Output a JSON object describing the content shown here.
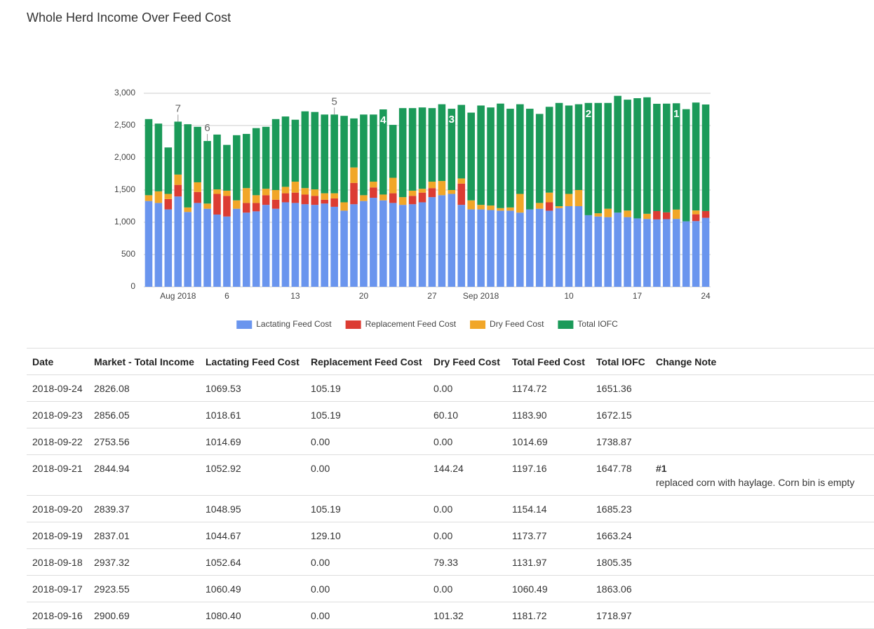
{
  "chart_data": {
    "type": "bar",
    "stacked": true,
    "title": "Whole Herd Income Over Feed Cost",
    "x": [
      "2018-07-29",
      "2018-07-30",
      "2018-07-31",
      "2018-08-01",
      "2018-08-02",
      "2018-08-03",
      "2018-08-04",
      "2018-08-05",
      "2018-08-06",
      "2018-08-07",
      "2018-08-08",
      "2018-08-09",
      "2018-08-10",
      "2018-08-11",
      "2018-08-12",
      "2018-08-13",
      "2018-08-14",
      "2018-08-15",
      "2018-08-16",
      "2018-08-17",
      "2018-08-18",
      "2018-08-19",
      "2018-08-20",
      "2018-08-21",
      "2018-08-22",
      "2018-08-23",
      "2018-08-24",
      "2018-08-25",
      "2018-08-26",
      "2018-08-27",
      "2018-08-28",
      "2018-08-29",
      "2018-08-30",
      "2018-08-31",
      "2018-09-01",
      "2018-09-02",
      "2018-09-03",
      "2018-09-04",
      "2018-09-05",
      "2018-09-06",
      "2018-09-07",
      "2018-09-08",
      "2018-09-09",
      "2018-09-10",
      "2018-09-11",
      "2018-09-12",
      "2018-09-13",
      "2018-09-14",
      "2018-09-15",
      "2018-09-16",
      "2018-09-17",
      "2018-09-18",
      "2018-09-19",
      "2018-09-20",
      "2018-09-21",
      "2018-09-22",
      "2018-09-23",
      "2018-09-24"
    ],
    "series": [
      {
        "name": "Lactating Feed Cost",
        "color": "#6a95ee",
        "values": [
          1330,
          1300,
          1200,
          1400,
          1160,
          1300,
          1210,
          1120,
          1090,
          1210,
          1150,
          1170,
          1270,
          1210,
          1310,
          1300,
          1280,
          1270,
          1290,
          1240,
          1180,
          1280,
          1330,
          1380,
          1340,
          1300,
          1270,
          1280,
          1310,
          1390,
          1420,
          1440,
          1270,
          1200,
          1200,
          1190,
          1180,
          1180,
          1150,
          1200,
          1210,
          1180,
          1220,
          1250,
          1250,
          1110,
          1090,
          1080,
          1150,
          1080.4,
          1060.49,
          1052.64,
          1044.67,
          1048.95,
          1052.92,
          1014.69,
          1018.61,
          1069.53
        ]
      },
      {
        "name": "Replacement Feed Cost",
        "color": "#dc3c32",
        "values": [
          0,
          0,
          160,
          180,
          0,
          170,
          0,
          320,
          320,
          0,
          150,
          130,
          150,
          140,
          140,
          160,
          150,
          140,
          60,
          130,
          0,
          330,
          0,
          160,
          0,
          150,
          0,
          130,
          150,
          140,
          0,
          0,
          330,
          0,
          0,
          0,
          0,
          0,
          0,
          0,
          0,
          130,
          0,
          0,
          0,
          0,
          0,
          0,
          0,
          0,
          0,
          0,
          129.1,
          105.19,
          0,
          0,
          105.19,
          105.19
        ]
      },
      {
        "name": "Dry Feed Cost",
        "color": "#f1a628",
        "values": [
          90,
          180,
          80,
          160,
          70,
          150,
          80,
          70,
          80,
          130,
          230,
          120,
          100,
          150,
          100,
          170,
          100,
          100,
          100,
          80,
          130,
          240,
          90,
          90,
          90,
          240,
          120,
          80,
          60,
          100,
          220,
          60,
          80,
          140,
          70,
          70,
          40,
          50,
          290,
          0,
          90,
          150,
          30,
          190,
          250,
          0,
          50,
          130,
          0,
          101.32,
          0,
          79.33,
          0,
          0,
          144.24,
          0,
          60.1,
          0
        ]
      },
      {
        "name": "Total IOFC",
        "color": "#1b9a59",
        "values": [
          1180,
          1050,
          720,
          820,
          1290,
          860,
          970,
          850,
          710,
          1010,
          840,
          1040,
          960,
          1100,
          1090,
          960,
          1190,
          1200,
          1220,
          1220,
          1340,
          760,
          1250,
          1040,
          1320,
          820,
          1380,
          1280,
          1260,
          1140,
          1190,
          1260,
          1140,
          1360,
          1540,
          1520,
          1620,
          1530,
          1390,
          1560,
          1380,
          1330,
          1600,
          1370,
          1330,
          1740,
          1710,
          1640,
          1810,
          1718.97,
          1863.06,
          1805.35,
          1663.24,
          1685.23,
          1647.78,
          1738.87,
          1672.15,
          1651.36
        ]
      }
    ],
    "ylim": [
      0,
      3000
    ],
    "yticks": [
      0,
      500,
      {
        "value": 1000,
        "label": "1,000"
      },
      {
        "value": 1500,
        "label": "1,500"
      },
      {
        "value": 2000,
        "label": "2,000"
      },
      {
        "value": 2500,
        "label": "2,500"
      },
      {
        "value": 3000,
        "label": "3,000"
      }
    ],
    "xticks": [
      {
        "value": "2018-08-01",
        "label": "Aug 2018"
      },
      {
        "value": "2018-08-06",
        "label": "6"
      },
      {
        "value": "2018-08-13",
        "label": "13"
      },
      {
        "value": "2018-08-20",
        "label": "20"
      },
      {
        "value": "2018-08-27",
        "label": "27"
      },
      {
        "value": "2018-09-01",
        "label": "Sep 2018"
      },
      {
        "value": "2018-09-10",
        "label": "10"
      },
      {
        "value": "2018-09-17",
        "label": "17"
      },
      {
        "value": "2018-09-24",
        "label": "24"
      }
    ],
    "grid": true,
    "legend": "bottom",
    "annotations": [
      {
        "x": "2018-08-01",
        "label": "7",
        "position": "outside"
      },
      {
        "x": "2018-08-04",
        "label": "6",
        "position": "outside"
      },
      {
        "x": "2018-08-17",
        "label": "5",
        "position": "outside"
      },
      {
        "x": "2018-08-22",
        "label": "4",
        "position": "inside"
      },
      {
        "x": "2018-08-29",
        "label": "3",
        "position": "inside"
      },
      {
        "x": "2018-09-12",
        "label": "2",
        "position": "inside"
      },
      {
        "x": "2018-09-21",
        "label": "1",
        "position": "inside"
      }
    ]
  },
  "table": {
    "columns": [
      "Date",
      "Market - Total Income",
      "Lactating Feed Cost",
      "Replacement Feed Cost",
      "Dry Feed Cost",
      "Total Feed Cost",
      "Total IOFC",
      "Change Note"
    ],
    "rows": [
      {
        "cells": [
          "2018-09-24",
          "2826.08",
          "1069.53",
          "105.19",
          "0.00",
          "1174.72",
          "1651.36"
        ]
      },
      {
        "cells": [
          "2018-09-23",
          "2856.05",
          "1018.61",
          "105.19",
          "60.10",
          "1183.90",
          "1672.15"
        ]
      },
      {
        "cells": [
          "2018-09-22",
          "2753.56",
          "1014.69",
          "0.00",
          "0.00",
          "1014.69",
          "1738.87"
        ]
      },
      {
        "cells": [
          "2018-09-21",
          "2844.94",
          "1052.92",
          "0.00",
          "144.24",
          "1197.16",
          "1647.78"
        ],
        "note": {
          "title": "#1",
          "text": "replaced corn with haylage. Corn bin is empty"
        }
      },
      {
        "cells": [
          "2018-09-20",
          "2839.37",
          "1048.95",
          "105.19",
          "0.00",
          "1154.14",
          "1685.23"
        ]
      },
      {
        "cells": [
          "2018-09-19",
          "2837.01",
          "1044.67",
          "129.10",
          "0.00",
          "1173.77",
          "1663.24"
        ]
      },
      {
        "cells": [
          "2018-09-18",
          "2937.32",
          "1052.64",
          "0.00",
          "79.33",
          "1131.97",
          "1805.35"
        ]
      },
      {
        "cells": [
          "2018-09-17",
          "2923.55",
          "1060.49",
          "0.00",
          "0.00",
          "1060.49",
          "1863.06"
        ]
      },
      {
        "cells": [
          "2018-09-16",
          "2900.69",
          "1080.40",
          "0.00",
          "101.32",
          "1181.72",
          "1718.97"
        ]
      }
    ]
  }
}
